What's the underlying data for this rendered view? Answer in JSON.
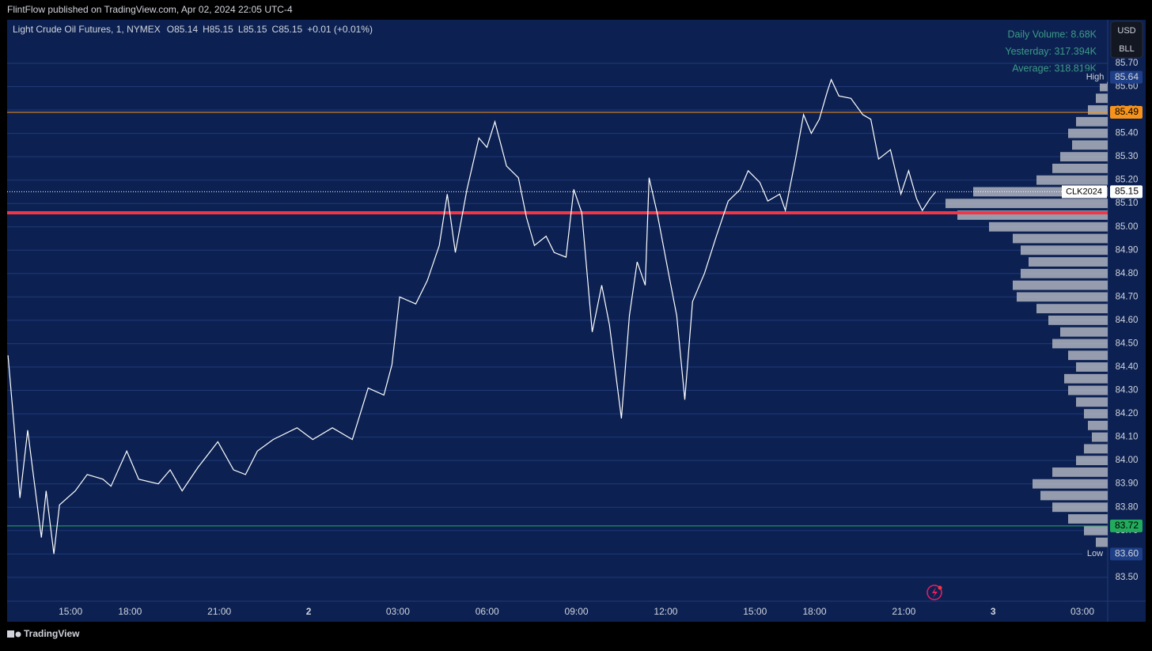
{
  "page": {
    "published": "FlintFlow published on TradingView.com, Apr 02, 2024 22:05 UTC-4",
    "brand": "TradingView"
  },
  "chart_data": {
    "type": "line",
    "title": "Light Crude Oil Futures, 1, NYMEX",
    "ohlc": [
      "O85.14",
      "H85.15",
      "L85.15",
      "C85.15",
      "+0.01 (+0.01%)"
    ],
    "stats": [
      "Daily Volume: 8.68K",
      "Yesterday: 317.394K",
      "Average: 318.819K"
    ],
    "currency_buttons": [
      "USD",
      "BLL"
    ],
    "x": [
      -2.1,
      -1.89,
      -1.7,
      -1.44,
      -1.25,
      -0.98,
      -0.82,
      -0.56,
      -0.37,
      0.16,
      0.56,
      1.09,
      1.36,
      1.89,
      2.29,
      2.95,
      3.35,
      3.75,
      4.28,
      4.95,
      5.48,
      5.88,
      6.28,
      6.81,
      7.61,
      8.14,
      8.8,
      9.47,
      10.0,
      10.53,
      10.8,
      11.06,
      11.6,
      11.99,
      12.39,
      12.66,
      12.93,
      13.32,
      13.72,
      13.99,
      14.26,
      14.65,
      15.05,
      15.32,
      15.59,
      15.98,
      16.25,
      16.65,
      16.91,
      17.18,
      17.53,
      17.85,
      18.11,
      18.51,
      18.78,
      19.04,
      19.31,
      19.44,
      19.71,
      20.11,
      20.37,
      20.64,
      20.9,
      21.3,
      21.7,
      22.1,
      22.5,
      22.77,
      23.16,
      23.43,
      23.83,
      24.02,
      24.36,
      24.63,
      24.89,
      25.16,
      25.43,
      25.56,
      25.82,
      26.22,
      26.62,
      26.89,
      27.15,
      27.55,
      27.9,
      28.16,
      28.43,
      28.62,
      28.88,
      29.07
    ],
    "series": [
      {
        "name": "CLK2024",
        "color": "#ffffff",
        "values": [
          84.45,
          84.14,
          83.84,
          84.13,
          83.94,
          83.67,
          83.87,
          83.6,
          83.81,
          83.87,
          83.94,
          83.92,
          83.89,
          84.04,
          83.92,
          83.9,
          83.96,
          83.87,
          83.97,
          84.08,
          83.96,
          83.94,
          84.04,
          84.09,
          84.14,
          84.09,
          84.14,
          84.09,
          84.31,
          84.28,
          84.41,
          84.7,
          84.67,
          84.77,
          84.92,
          85.14,
          84.89,
          85.16,
          85.38,
          85.34,
          85.45,
          85.26,
          85.21,
          85.04,
          84.92,
          84.96,
          84.89,
          84.87,
          85.16,
          85.06,
          84.55,
          84.75,
          84.58,
          84.18,
          84.62,
          84.85,
          84.75,
          85.21,
          85.06,
          84.79,
          84.62,
          84.26,
          84.68,
          84.8,
          84.96,
          85.11,
          85.16,
          85.24,
          85.19,
          85.11,
          85.14,
          85.07,
          85.29,
          85.48,
          85.4,
          85.46,
          85.58,
          85.63,
          85.56,
          85.55,
          85.48,
          85.46,
          85.29,
          85.33,
          85.14,
          85.24,
          85.12,
          85.07,
          85.12,
          85.15
        ]
      }
    ],
    "last_price": 85.15,
    "xlim": [
      -2.13,
      34.85
    ],
    "xticks": [
      {
        "value": 0,
        "label": "15:00"
      },
      {
        "value": 2,
        "label": "18:00"
      },
      {
        "value": 5,
        "label": "21:00"
      },
      {
        "value": 8,
        "label": "2"
      },
      {
        "value": 11,
        "label": "03:00"
      },
      {
        "value": 14,
        "label": "06:00"
      },
      {
        "value": 17,
        "label": "09:00"
      },
      {
        "value": 20,
        "label": "12:00"
      },
      {
        "value": 23,
        "label": "15:00"
      },
      {
        "value": 25,
        "label": "18:00"
      },
      {
        "value": 28,
        "label": "21:00"
      },
      {
        "value": 31,
        "label": "3"
      },
      {
        "value": 34,
        "label": "03:00"
      }
    ],
    "ylim": [
      83.398,
      85.886
    ],
    "yticks": [
      {
        "value": 83.5,
        "label": "83.50"
      },
      {
        "value": 83.6,
        "label": "83.60"
      },
      {
        "value": 83.7,
        "label": "83.70"
      },
      {
        "value": 83.8,
        "label": "83.80"
      },
      {
        "value": 83.9,
        "label": "83.90"
      },
      {
        "value": 84.0,
        "label": "84.00"
      },
      {
        "value": 84.1,
        "label": "84.10"
      },
      {
        "value": 84.2,
        "label": "84.20"
      },
      {
        "value": 84.3,
        "label": "84.30"
      },
      {
        "value": 84.4,
        "label": "84.40"
      },
      {
        "value": 84.5,
        "label": "84.50"
      },
      {
        "value": 84.6,
        "label": "84.60"
      },
      {
        "value": 84.7,
        "label": "84.70"
      },
      {
        "value": 84.8,
        "label": "84.80"
      },
      {
        "value": 84.9,
        "label": "84.90"
      },
      {
        "value": 85.0,
        "label": "85.00"
      },
      {
        "value": 85.1,
        "label": "85.10"
      },
      {
        "value": 85.2,
        "label": "85.20"
      },
      {
        "value": 85.3,
        "label": "85.30"
      },
      {
        "value": 85.4,
        "label": "85.40"
      },
      {
        "value": 85.5,
        "label": "85.50"
      },
      {
        "value": 85.6,
        "label": "85.60"
      },
      {
        "value": 85.7,
        "label": "85.70"
      }
    ],
    "grid": true,
    "levels": [
      {
        "value": 85.49,
        "value_label": "85.49",
        "color": "#f7931a"
      },
      {
        "value": 85.06,
        "color": "#f23645",
        "line_width": 4
      },
      {
        "value": 83.72,
        "value_label": "83.72",
        "color": "#22ab5c"
      }
    ],
    "markers": [
      {
        "name": "High",
        "value": 85.64,
        "value_label": "85.64"
      },
      {
        "name": "Low",
        "value": 83.6,
        "value_label": "83.60"
      }
    ],
    "volume_profile": {
      "color": "#c3c6ce",
      "prices": [
        85.6,
        85.55,
        85.5,
        85.45,
        85.4,
        85.35,
        85.3,
        85.25,
        85.2,
        85.15,
        85.1,
        85.05,
        85.0,
        84.95,
        84.9,
        84.85,
        84.8,
        84.75,
        84.7,
        84.65,
        84.6,
        84.55,
        84.5,
        84.45,
        84.4,
        84.35,
        84.3,
        84.25,
        84.2,
        84.15,
        84.1,
        84.05,
        84.0,
        83.95,
        83.9,
        83.85,
        83.8,
        83.75,
        83.7,
        83.65
      ],
      "values": [
        10,
        15,
        25,
        40,
        50,
        45,
        60,
        70,
        90,
        170,
        205,
        190,
        150,
        120,
        110,
        100,
        110,
        120,
        115,
        90,
        75,
        60,
        70,
        50,
        40,
        55,
        50,
        40,
        30,
        25,
        20,
        30,
        40,
        70,
        95,
        85,
        70,
        50,
        30,
        15
      ]
    }
  }
}
